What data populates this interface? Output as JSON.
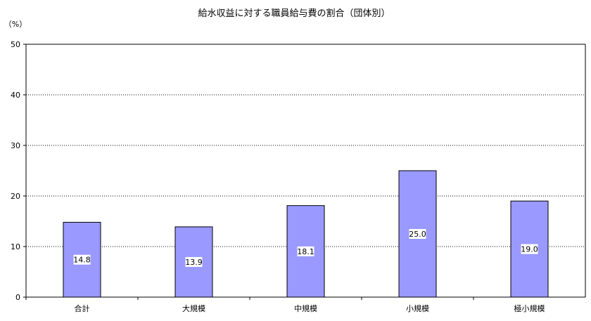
{
  "chart_data": {
    "type": "bar",
    "title": "給水収益に対する職員給与費の割合（団体別）",
    "ylabel": "（%）",
    "xlabel": "",
    "categories": [
      "合計",
      "大規模",
      "中規模",
      "小規模",
      "極小規模"
    ],
    "values": [
      14.8,
      13.9,
      18.1,
      25.0,
      19.0
    ],
    "value_labels": [
      "14.8",
      "13.9",
      "18.1",
      "25.0",
      "19.0"
    ],
    "ylim": [
      0,
      50
    ],
    "yticks": [
      0,
      10,
      20,
      30,
      40,
      50
    ],
    "grid": true,
    "legend": "none",
    "colors": {
      "bar_fill": "#9999ff",
      "bar_stroke": "#000000",
      "grid": "#000000",
      "label_bg": "#ffffff"
    }
  }
}
